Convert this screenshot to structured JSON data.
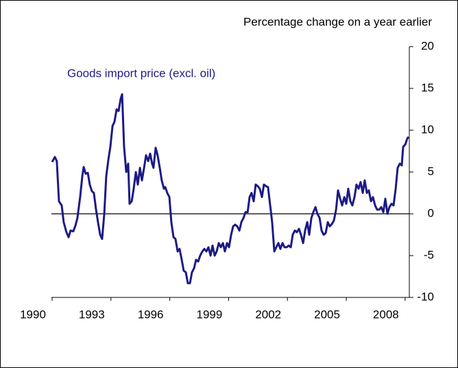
{
  "chart_data": {
    "type": "line",
    "y_label": "Percentage change on a year earlier",
    "xlim": [
      1990,
      2008.25
    ],
    "xticks": [
      1990,
      1993,
      1996,
      1999,
      2002,
      2005,
      2008
    ],
    "ylim": [
      -10,
      20
    ],
    "yticks": [
      -10,
      -5,
      0,
      5,
      10,
      15,
      20
    ],
    "zero_line": true,
    "series": [
      {
        "name": "Goods import price (excl. oil)",
        "color": "#1c1a84",
        "x": [
          1990.0,
          1990.14,
          1990.24,
          1990.35,
          1990.49,
          1990.59,
          1990.73,
          1990.84,
          1990.94,
          1991.08,
          1991.19,
          1991.29,
          1991.43,
          1991.54,
          1991.61,
          1991.71,
          1991.82,
          1991.92,
          1992.03,
          1992.13,
          1992.24,
          1992.34,
          1992.45,
          1992.55,
          1992.66,
          1992.76,
          1992.87,
          1992.97,
          1993.08,
          1993.18,
          1993.29,
          1993.39,
          1993.5,
          1993.57,
          1993.67,
          1993.78,
          1993.88,
          1993.95,
          1994.06,
          1994.16,
          1994.27,
          1994.37,
          1994.48,
          1994.58,
          1994.69,
          1994.79,
          1994.9,
          1995.0,
          1995.1,
          1995.17,
          1995.28,
          1995.38,
          1995.49,
          1995.59,
          1995.7,
          1995.77,
          1995.87,
          1995.98,
          1996.08,
          1996.19,
          1996.29,
          1996.4,
          1996.5,
          1996.61,
          1996.71,
          1996.82,
          1996.92,
          1997.03,
          1997.13,
          1997.24,
          1997.34,
          1997.45,
          1997.55,
          1997.66,
          1997.76,
          1997.87,
          1997.97,
          1998.08,
          1998.18,
          1998.29,
          1998.39,
          1998.5,
          1998.6,
          1998.71,
          1998.81,
          1998.92,
          1999.02,
          1999.13,
          1999.23,
          1999.34,
          1999.44,
          1999.55,
          1999.65,
          1999.76,
          1999.86,
          1999.97,
          2000.07,
          2000.17,
          2000.28,
          2000.38,
          2000.49,
          2000.59,
          2000.7,
          2000.8,
          2000.91,
          2001.01,
          2001.12,
          2001.22,
          2001.33,
          2001.43,
          2001.54,
          2001.64,
          2001.75,
          2001.85,
          2001.96,
          2002.06,
          2002.17,
          2002.27,
          2002.38,
          2002.48,
          2002.59,
          2002.69,
          2002.8,
          2002.9,
          2003.01,
          2003.11,
          2003.22,
          2003.32,
          2003.43,
          2003.53,
          2003.64,
          2003.74,
          2003.85,
          2003.95,
          2004.06,
          2004.16,
          2004.27,
          2004.37,
          2004.48,
          2004.58,
          2004.69,
          2004.79,
          2004.9,
          2005.0,
          2005.1,
          2005.21,
          2005.31,
          2005.42,
          2005.52,
          2005.63,
          2005.73,
          2005.84,
          2005.94,
          2006.05,
          2006.15,
          2006.26,
          2006.36,
          2006.47,
          2006.57,
          2006.68,
          2006.78,
          2006.89,
          2006.99,
          2007.1,
          2007.2,
          2007.31,
          2007.41,
          2007.52,
          2007.62,
          2007.73,
          2007.83,
          2007.9,
          2008.01,
          2008.11,
          2008.18
        ],
        "values": [
          6.2,
          6.8,
          6.3,
          1.5,
          1.0,
          -1.0,
          -2.2,
          -2.8,
          -2.0,
          -2.1,
          -1.4,
          -0.5,
          2.0,
          4.5,
          5.6,
          4.8,
          4.9,
          3.5,
          2.7,
          2.5,
          0.5,
          -1.0,
          -2.5,
          -3.0,
          0.0,
          4.5,
          6.5,
          8.0,
          10.5,
          11.0,
          12.5,
          12.3,
          13.8,
          14.3,
          8.0,
          5.0,
          6.0,
          1.2,
          1.5,
          3.0,
          5.0,
          3.5,
          5.5,
          4.0,
          5.5,
          7.0,
          6.3,
          7.2,
          6.0,
          5.5,
          7.9,
          7.0,
          5.5,
          4.0,
          3.0,
          3.2,
          2.5,
          2.0,
          -1.0,
          -2.8,
          -3.0,
          -4.5,
          -4.2,
          -5.5,
          -6.8,
          -7.0,
          -8.3,
          -8.3,
          -7.0,
          -6.5,
          -5.5,
          -5.7,
          -5.0,
          -4.5,
          -4.2,
          -4.5,
          -4.0,
          -5.0,
          -3.8,
          -5.0,
          -4.5,
          -3.5,
          -4.0,
          -3.5,
          -4.5,
          -3.5,
          -4.0,
          -2.5,
          -1.5,
          -1.3,
          -1.5,
          -2.0,
          -1.0,
          -0.5,
          0.2,
          0.2,
          2.0,
          2.5,
          1.5,
          3.5,
          3.3,
          3.0,
          2.0,
          3.5,
          3.3,
          3.2,
          1.0,
          -1.0,
          -4.5,
          -4.0,
          -3.5,
          -4.2,
          -3.5,
          -4.0,
          -4.0,
          -3.8,
          -4.0,
          -2.5,
          -2.0,
          -2.2,
          -1.8,
          -2.5,
          -3.5,
          -2.0,
          -1.0,
          -2.5,
          -0.5,
          0.2,
          0.8,
          0.0,
          -0.5,
          -2.0,
          -2.5,
          -2.3,
          -1.0,
          -1.5,
          -1.2,
          -0.8,
          0.5,
          2.8,
          1.8,
          1.0,
          2.0,
          1.2,
          3.0,
          1.5,
          1.0,
          2.0,
          3.5,
          3.0,
          3.8,
          2.5,
          4.0,
          2.5,
          2.8,
          1.5,
          2.0,
          1.0,
          0.5,
          0.5,
          0.8,
          0.2,
          1.8,
          0.0,
          0.8,
          1.2,
          1.0,
          3.0,
          5.5,
          6.0,
          5.8,
          8.0,
          8.3,
          9.0,
          9.2
        ]
      }
    ]
  }
}
